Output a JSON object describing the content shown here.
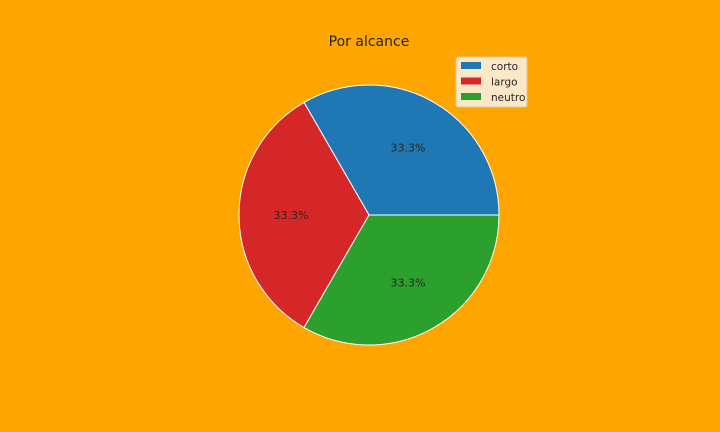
{
  "chart_data": {
    "type": "pie",
    "title": "Por alcance",
    "categories": [
      "corto",
      "largo",
      "neutro"
    ],
    "values": [
      33.3,
      33.3,
      33.3
    ],
    "value_labels": [
      "33.3%",
      "33.3%",
      "33.3%"
    ],
    "colors": [
      "#1f77b4",
      "#d62728",
      "#2ca02c"
    ],
    "start_angle_deg": 0,
    "direction": "counterclockwise",
    "legend_position": "top-right",
    "background_color": "#ffa500",
    "legend_background": "#fbe8c8",
    "wedge_edge_color": "#ffffff"
  }
}
